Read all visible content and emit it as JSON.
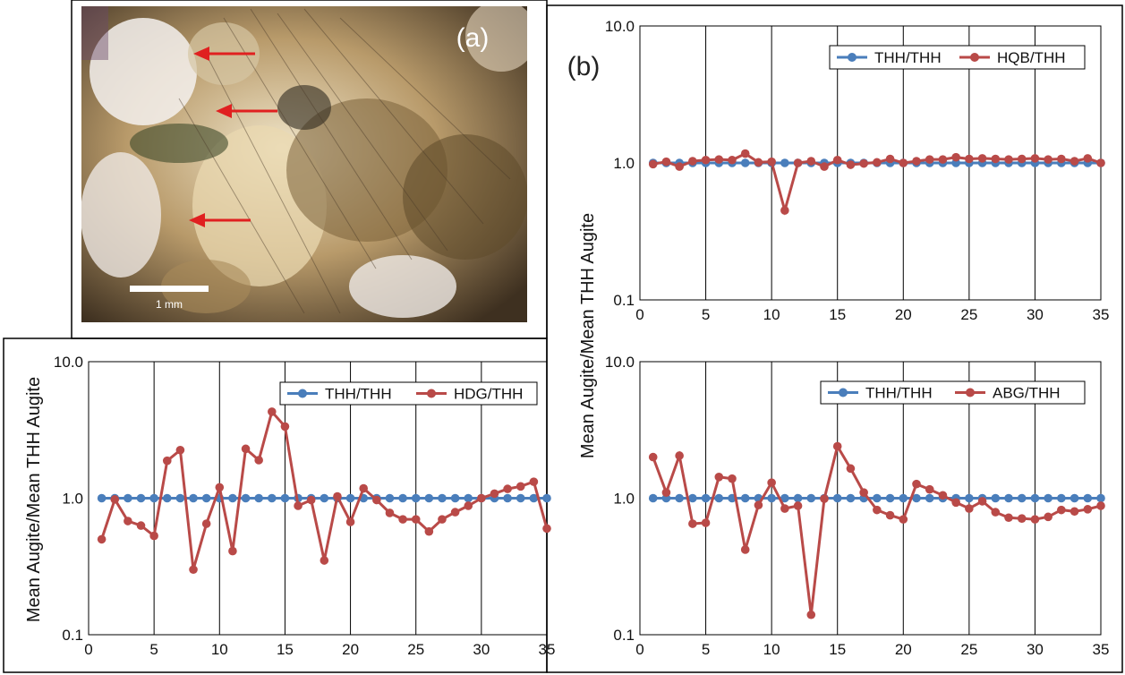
{
  "panels": {
    "a": {
      "label": "(a)",
      "scale_label": "1 mm"
    },
    "b": {
      "label": "(b)"
    }
  },
  "colors": {
    "series_ref": "#4a7ebb",
    "series_cmp": "#b94a48",
    "arrow": "#e02020",
    "frame": "#000000"
  },
  "chart_data": [
    {
      "type": "line",
      "position": "top-right",
      "title": "",
      "xlabel": "",
      "ylabel": "Mean Augite/Mean THH Augite",
      "y_scale": "log",
      "xlim": [
        0,
        35
      ],
      "ylim": [
        0.1,
        10.0
      ],
      "xticks": [
        "0",
        "5",
        "10",
        "15",
        "20",
        "25",
        "30",
        "35"
      ],
      "yticks": [
        "0.1",
        "1.0",
        "10.0"
      ],
      "legend_position": "top-right",
      "grid": "vertical",
      "series": [
        {
          "name": "THH/THH",
          "x": [
            1,
            2,
            3,
            4,
            5,
            6,
            7,
            8,
            9,
            10,
            11,
            12,
            13,
            14,
            15,
            16,
            17,
            18,
            19,
            20,
            21,
            22,
            23,
            24,
            25,
            26,
            27,
            28,
            29,
            30,
            31,
            32,
            33,
            34,
            35
          ],
          "values": [
            1,
            1,
            1,
            1,
            1,
            1,
            1,
            1,
            1,
            1,
            1,
            1,
            1,
            1,
            1,
            1,
            1,
            1,
            1,
            1,
            1,
            1,
            1,
            1,
            1,
            1,
            1,
            1,
            1,
            1,
            1,
            1,
            1,
            1,
            1
          ]
        },
        {
          "name": "HQB/THH",
          "x": [
            1,
            2,
            3,
            4,
            5,
            6,
            7,
            8,
            9,
            10,
            11,
            12,
            13,
            14,
            15,
            16,
            17,
            18,
            19,
            20,
            21,
            22,
            23,
            24,
            25,
            26,
            27,
            28,
            29,
            30,
            31,
            32,
            33,
            34,
            35
          ],
          "values": [
            0.98,
            1.02,
            0.94,
            1.03,
            1.05,
            1.06,
            1.05,
            1.17,
            1.01,
            1.02,
            0.45,
            1.0,
            1.03,
            0.94,
            1.05,
            0.97,
            0.99,
            1.01,
            1.07,
            1.0,
            1.03,
            1.06,
            1.06,
            1.1,
            1.07,
            1.08,
            1.07,
            1.06,
            1.07,
            1.08,
            1.06,
            1.07,
            1.03,
            1.08,
            1.0
          ]
        }
      ]
    },
    {
      "type": "line",
      "position": "bottom-left",
      "title": "",
      "xlabel": "",
      "ylabel": "Mean Augite/Mean THH Augite",
      "y_scale": "log",
      "xlim": [
        0,
        35
      ],
      "ylim": [
        0.1,
        10.0
      ],
      "xticks": [
        "0",
        "5",
        "10",
        "15",
        "20",
        "25",
        "30",
        "35"
      ],
      "yticks": [
        "0.1",
        "1.0",
        "10.0"
      ],
      "legend_position": "top-right",
      "grid": "vertical",
      "series": [
        {
          "name": "THH/THH",
          "x": [
            1,
            2,
            3,
            4,
            5,
            6,
            7,
            8,
            9,
            10,
            11,
            12,
            13,
            14,
            15,
            16,
            17,
            18,
            19,
            20,
            21,
            22,
            23,
            24,
            25,
            26,
            27,
            28,
            29,
            30,
            31,
            32,
            33,
            34,
            35
          ],
          "values": [
            1,
            1,
            1,
            1,
            1,
            1,
            1,
            1,
            1,
            1,
            1,
            1,
            1,
            1,
            1,
            1,
            1,
            1,
            1,
            1,
            1,
            1,
            1,
            1,
            1,
            1,
            1,
            1,
            1,
            1,
            1,
            1,
            1,
            1,
            1
          ]
        },
        {
          "name": "HDG/THH",
          "x": [
            1,
            2,
            3,
            4,
            5,
            6,
            7,
            8,
            9,
            10,
            11,
            12,
            13,
            14,
            15,
            16,
            17,
            18,
            19,
            20,
            21,
            22,
            23,
            24,
            25,
            26,
            27,
            28,
            29,
            30,
            31,
            32,
            33,
            34,
            35
          ],
          "values": [
            0.5,
            0.98,
            0.68,
            0.63,
            0.53,
            1.88,
            2.25,
            0.3,
            0.65,
            1.2,
            0.41,
            2.3,
            1.9,
            4.3,
            3.35,
            0.88,
            0.97,
            0.35,
            1.03,
            0.67,
            1.18,
            0.97,
            0.78,
            0.7,
            0.7,
            0.57,
            0.7,
            0.79,
            0.88,
            1.0,
            1.08,
            1.17,
            1.22,
            1.32,
            0.6
          ]
        }
      ]
    },
    {
      "type": "line",
      "position": "bottom-right",
      "title": "",
      "xlabel": "",
      "ylabel": "Mean Augite/Mean THH Augite",
      "y_scale": "log",
      "xlim": [
        0,
        35
      ],
      "ylim": [
        0.1,
        10.0
      ],
      "xticks": [
        "0",
        "5",
        "10",
        "15",
        "20",
        "25",
        "30",
        "35"
      ],
      "yticks": [
        "0.1",
        "1.0",
        "10.0"
      ],
      "legend_position": "top-right",
      "grid": "vertical",
      "series": [
        {
          "name": "THH/THH",
          "x": [
            1,
            2,
            3,
            4,
            5,
            6,
            7,
            8,
            9,
            10,
            11,
            12,
            13,
            14,
            15,
            16,
            17,
            18,
            19,
            20,
            21,
            22,
            23,
            24,
            25,
            26,
            27,
            28,
            29,
            30,
            31,
            32,
            33,
            34,
            35
          ],
          "values": [
            1,
            1,
            1,
            1,
            1,
            1,
            1,
            1,
            1,
            1,
            1,
            1,
            1,
            1,
            1,
            1,
            1,
            1,
            1,
            1,
            1,
            1,
            1,
            1,
            1,
            1,
            1,
            1,
            1,
            1,
            1,
            1,
            1,
            1,
            1
          ]
        },
        {
          "name": "ABG/THH",
          "x": [
            1,
            2,
            3,
            4,
            5,
            6,
            7,
            8,
            9,
            10,
            11,
            12,
            13,
            14,
            15,
            16,
            17,
            18,
            19,
            20,
            21,
            22,
            23,
            24,
            25,
            26,
            27,
            28,
            29,
            30,
            31,
            32,
            33,
            34,
            35
          ],
          "values": [
            2.0,
            1.1,
            2.05,
            0.65,
            0.66,
            1.43,
            1.39,
            0.42,
            0.89,
            1.3,
            0.84,
            0.88,
            0.14,
            0.99,
            2.4,
            1.65,
            1.1,
            0.82,
            0.75,
            0.7,
            1.27,
            1.16,
            1.05,
            0.93,
            0.84,
            0.95,
            0.79,
            0.72,
            0.71,
            0.7,
            0.73,
            0.82,
            0.8,
            0.83,
            0.88
          ]
        }
      ]
    }
  ]
}
